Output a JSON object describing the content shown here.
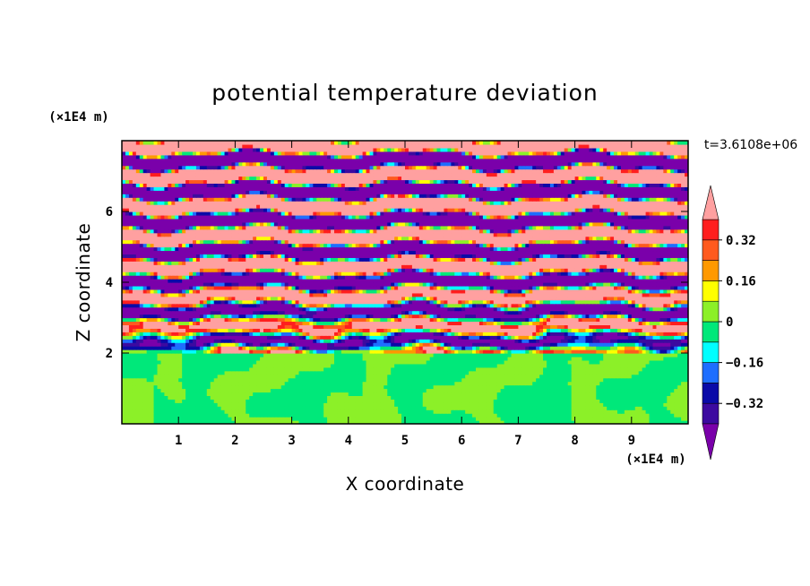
{
  "chart_data": {
    "type": "heatmap",
    "title": "potential temperature deviation",
    "xlabel": "X coordinate",
    "ylabel": "Z coordinate",
    "x_unit": "(×1E4 m)",
    "y_unit": "(×1E4 m)",
    "time_label": "t=3.6108e+06",
    "xlim": [
      0,
      10
    ],
    "ylim": [
      0,
      8
    ],
    "x_ticks": [
      1,
      2,
      3,
      4,
      5,
      6,
      7,
      8,
      9
    ],
    "y_ticks": [
      2,
      4,
      6
    ],
    "colorbar": {
      "levels": [
        -0.4,
        -0.32,
        -0.24,
        -0.16,
        -0.08,
        0,
        0.08,
        0.16,
        0.24,
        0.32,
        0.4
      ],
      "tick_labels": [
        "0.32",
        "0.16",
        "0",
        "−0.16",
        "−0.32"
      ],
      "tick_values": [
        0.32,
        0.16,
        0,
        -0.16,
        -0.32
      ],
      "colors": [
        "#7a00aa",
        "#3c0aa0",
        "#0a0aa8",
        "#1e6eff",
        "#00ffff",
        "#00e87a",
        "#8cf028",
        "#ffff00",
        "#ff9900",
        "#ff5a1e",
        "#ff1e1e",
        "#ffa0a0"
      ],
      "extend": "both"
    },
    "field_description": {
      "lower_layer_z_max": 2.0,
      "lower_layer_dominant_values": [
        -0.04,
        0.04
      ],
      "upper_layer": "alternating horizontal bands of strongly positive (>0.4) and strongly negative (<-0.4) deviation, mixed with intermediate values between z=2 and z=5"
    }
  }
}
